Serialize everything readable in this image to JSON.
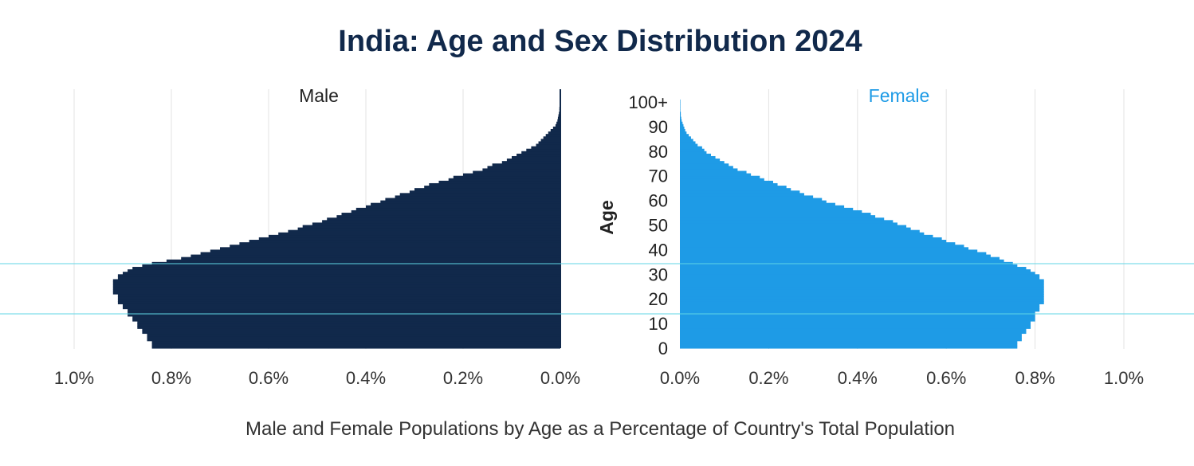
{
  "chart_data": {
    "type": "bar",
    "orientation": "horizontal",
    "style": "population-pyramid",
    "title": "India: Age and Sex Distribution 2024",
    "xlabel": "Male and Female Populations by Age as a Percentage of Country's Total Population",
    "ylabel": "Age",
    "panels": {
      "male": {
        "label": "Male",
        "xlim": [
          1.0,
          0.0
        ],
        "ticks": [
          "1.0%",
          "0.8%",
          "0.6%",
          "0.4%",
          "0.2%",
          "0.0%"
        ]
      },
      "female": {
        "label": "Female",
        "xlim": [
          0.0,
          1.0
        ],
        "ticks": [
          "0.0%",
          "0.2%",
          "0.4%",
          "0.6%",
          "0.8%",
          "1.0%"
        ]
      }
    },
    "age_ticks": [
      "0",
      "10",
      "20",
      "30",
      "40",
      "50",
      "60",
      "70",
      "80",
      "90",
      "100+"
    ],
    "ylim": [
      0,
      100
    ],
    "grid": true,
    "age_step": 1,
    "series": [
      {
        "name": "Male",
        "color": "#11294b",
        "values": [
          0.84,
          0.84,
          0.84,
          0.85,
          0.85,
          0.85,
          0.86,
          0.86,
          0.87,
          0.87,
          0.87,
          0.88,
          0.88,
          0.89,
          0.89,
          0.89,
          0.9,
          0.9,
          0.91,
          0.91,
          0.91,
          0.91,
          0.92,
          0.92,
          0.92,
          0.92,
          0.92,
          0.92,
          0.91,
          0.91,
          0.9,
          0.89,
          0.88,
          0.86,
          0.84,
          0.81,
          0.78,
          0.76,
          0.74,
          0.72,
          0.7,
          0.68,
          0.66,
          0.64,
          0.62,
          0.6,
          0.58,
          0.56,
          0.54,
          0.53,
          0.51,
          0.49,
          0.48,
          0.46,
          0.45,
          0.43,
          0.42,
          0.4,
          0.39,
          0.37,
          0.36,
          0.34,
          0.33,
          0.31,
          0.3,
          0.28,
          0.27,
          0.25,
          0.23,
          0.22,
          0.2,
          0.18,
          0.16,
          0.15,
          0.14,
          0.12,
          0.11,
          0.1,
          0.09,
          0.08,
          0.07,
          0.06,
          0.05,
          0.045,
          0.04,
          0.035,
          0.03,
          0.025,
          0.02,
          0.015,
          0.01,
          0.008,
          0.006,
          0.005,
          0.004,
          0.003,
          0.002,
          0.002,
          0.001,
          0.001,
          0.001
        ]
      },
      {
        "name": "Female",
        "color": "#1e9be6",
        "values": [
          0.76,
          0.76,
          0.76,
          0.77,
          0.77,
          0.77,
          0.78,
          0.78,
          0.79,
          0.79,
          0.79,
          0.8,
          0.8,
          0.8,
          0.8,
          0.81,
          0.81,
          0.81,
          0.82,
          0.82,
          0.82,
          0.82,
          0.82,
          0.82,
          0.82,
          0.82,
          0.82,
          0.82,
          0.81,
          0.81,
          0.8,
          0.79,
          0.78,
          0.76,
          0.75,
          0.73,
          0.72,
          0.7,
          0.69,
          0.67,
          0.65,
          0.64,
          0.62,
          0.6,
          0.59,
          0.57,
          0.55,
          0.54,
          0.52,
          0.51,
          0.49,
          0.48,
          0.46,
          0.44,
          0.43,
          0.41,
          0.39,
          0.37,
          0.35,
          0.33,
          0.32,
          0.3,
          0.28,
          0.27,
          0.25,
          0.24,
          0.22,
          0.21,
          0.19,
          0.18,
          0.16,
          0.15,
          0.13,
          0.12,
          0.11,
          0.1,
          0.09,
          0.08,
          0.07,
          0.06,
          0.055,
          0.05,
          0.04,
          0.035,
          0.03,
          0.025,
          0.02,
          0.015,
          0.012,
          0.01,
          0.008,
          0.006,
          0.004,
          0.003,
          0.002,
          0.002,
          0.001,
          0.001,
          0.001,
          0.001,
          0.001
        ]
      }
    ]
  }
}
